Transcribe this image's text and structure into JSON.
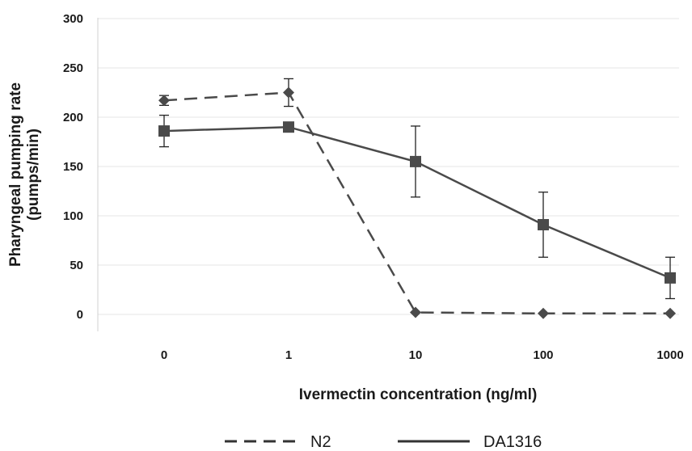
{
  "chart_data": {
    "type": "line",
    "categories": [
      "0",
      "1",
      "10",
      "100",
      "1000"
    ],
    "xlabel": "Ivermectin concentration (ng/ml)",
    "ylabel_lines": [
      "Pharyngeal pumping rate",
      "(pumps/min)"
    ],
    "ylim": [
      0,
      300
    ],
    "yticks": [
      "0",
      "50",
      "100",
      "150",
      "200",
      "250",
      "300"
    ],
    "grid": true,
    "legend_position": "bottom",
    "series": [
      {
        "name": "N2",
        "style": "dashed",
        "marker": "diamond",
        "color": "#4a4a4a",
        "values": [
          217,
          225,
          2,
          1,
          1
        ],
        "errors": [
          5,
          14,
          0,
          0,
          0
        ]
      },
      {
        "name": "DA1316",
        "style": "solid",
        "marker": "square",
        "color": "#4a4a4a",
        "values": [
          186,
          190,
          155,
          91,
          37
        ],
        "errors": [
          16,
          0,
          36,
          33,
          21
        ]
      }
    ]
  }
}
